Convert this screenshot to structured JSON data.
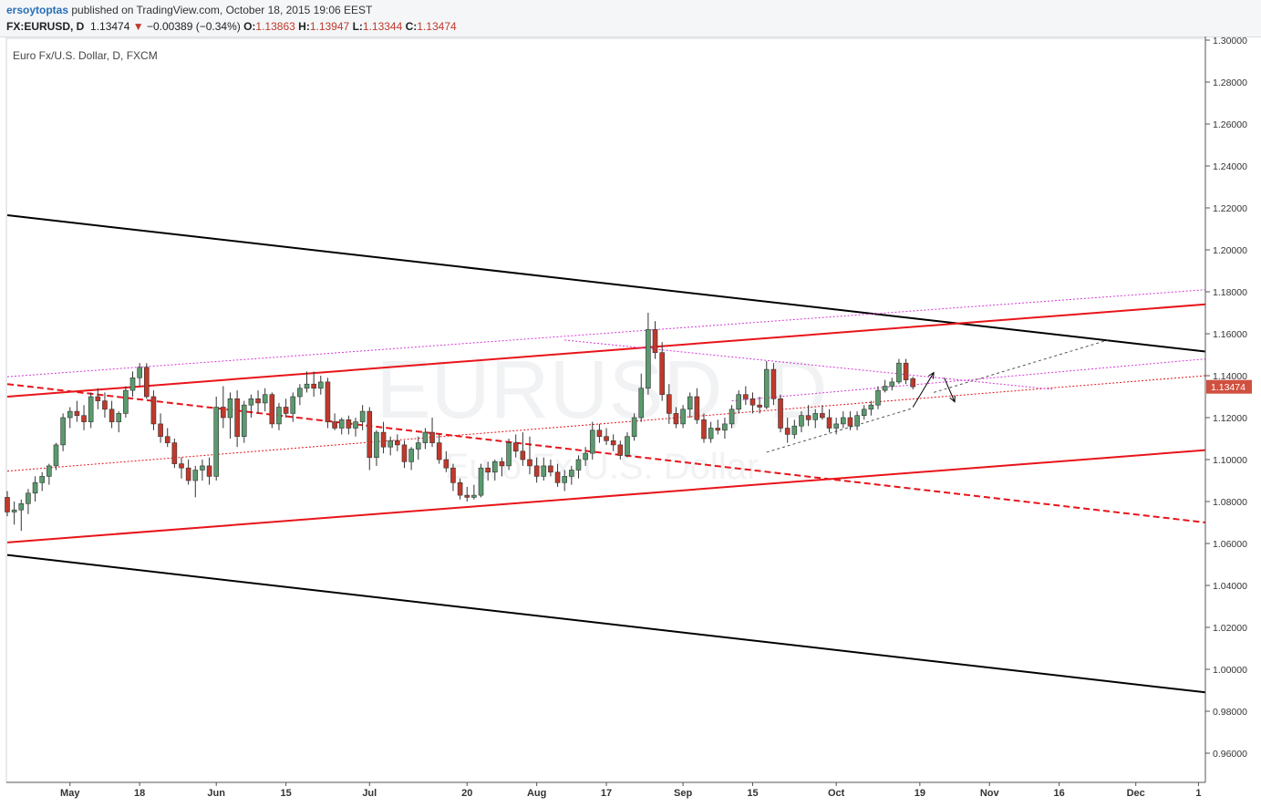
{
  "header": {
    "author": "ersoytoptas",
    "published_text": "published on TradingView.com, October 18, 2015 19:06 EEST",
    "symbol": "FX:EURUSD, D",
    "last": "1.13474",
    "change": "−0.00389 (−0.34%)",
    "open_label": "O:",
    "open": "1.13863",
    "high_label": "H:",
    "high": "1.13947",
    "low_label": "L:",
    "low": "1.13344",
    "close_label": "C:",
    "close": "1.13474"
  },
  "chart_title": "Euro Fx/U.S. Dollar, D, FXCM",
  "watermark": {
    "symbol": "EURUSD, D",
    "name": "Euro Fx/U.S. Dollar"
  },
  "price_label": "1.13474",
  "colors": {
    "up": "#5a9a6e",
    "down": "#c0392b",
    "channel": "#000000",
    "trend": "#e8141a",
    "magenta": "#d63ad6"
  },
  "chart_data": {
    "type": "candlestick",
    "title": "Euro Fx/U.S. Dollar, D, FXCM",
    "ylim": [
      0.95,
      1.3
    ],
    "y_ticks": [
      "1.30000",
      "1.28000",
      "1.26000",
      "1.24000",
      "1.22000",
      "1.20000",
      "1.18000",
      "1.16000",
      "1.14000",
      "1.12000",
      "1.10000",
      "1.08000",
      "1.06000",
      "1.04000",
      "1.02000",
      "1.00000",
      "0.98000",
      "0.96000"
    ],
    "x_ticks": [
      {
        "label": "May",
        "bar": 9
      },
      {
        "label": "18",
        "bar": 19
      },
      {
        "label": "Jun",
        "bar": 30
      },
      {
        "label": "15",
        "bar": 40
      },
      {
        "label": "Jul",
        "bar": 52
      },
      {
        "label": "20",
        "bar": 66
      },
      {
        "label": "Aug",
        "bar": 76
      },
      {
        "label": "17",
        "bar": 86
      },
      {
        "label": "Sep",
        "bar": 97
      },
      {
        "label": "15",
        "bar": 107
      },
      {
        "label": "Oct",
        "bar": 119
      },
      {
        "label": "19",
        "bar": 131
      },
      {
        "label": "Nov",
        "bar": 141
      },
      {
        "label": "16",
        "bar": 151
      },
      {
        "label": "Dec",
        "bar": 162
      },
      {
        "label": "1",
        "bar": 171
      }
    ],
    "ohlc": [
      [
        1.082,
        1.085,
        1.073,
        1.075
      ],
      [
        1.075,
        1.08,
        1.069,
        1.076
      ],
      [
        1.076,
        1.081,
        1.066,
        1.079
      ],
      [
        1.079,
        1.086,
        1.074,
        1.084
      ],
      [
        1.084,
        1.092,
        1.08,
        1.089
      ],
      [
        1.089,
        1.094,
        1.085,
        1.092
      ],
      [
        1.092,
        1.098,
        1.088,
        1.097
      ],
      [
        1.097,
        1.108,
        1.095,
        1.107
      ],
      [
        1.107,
        1.122,
        1.104,
        1.12
      ],
      [
        1.12,
        1.125,
        1.115,
        1.123
      ],
      [
        1.123,
        1.128,
        1.118,
        1.121
      ],
      [
        1.121,
        1.126,
        1.114,
        1.118
      ],
      [
        1.118,
        1.132,
        1.115,
        1.13
      ],
      [
        1.13,
        1.134,
        1.124,
        1.128
      ],
      [
        1.128,
        1.132,
        1.12,
        1.124
      ],
      [
        1.124,
        1.128,
        1.115,
        1.118
      ],
      [
        1.118,
        1.123,
        1.113,
        1.122
      ],
      [
        1.122,
        1.135,
        1.12,
        1.133
      ],
      [
        1.133,
        1.142,
        1.13,
        1.139
      ],
      [
        1.139,
        1.146,
        1.135,
        1.144
      ],
      [
        1.144,
        1.146,
        1.129,
        1.13
      ],
      [
        1.13,
        1.133,
        1.114,
        1.117
      ],
      [
        1.117,
        1.122,
        1.108,
        1.111
      ],
      [
        1.111,
        1.115,
        1.106,
        1.108
      ],
      [
        1.108,
        1.11,
        1.096,
        1.098
      ],
      [
        1.098,
        1.101,
        1.091,
        1.096
      ],
      [
        1.096,
        1.1,
        1.088,
        1.09
      ],
      [
        1.09,
        1.097,
        1.082,
        1.095
      ],
      [
        1.095,
        1.1,
        1.09,
        1.097
      ],
      [
        1.097,
        1.101,
        1.088,
        1.092
      ],
      [
        1.092,
        1.13,
        1.09,
        1.125
      ],
      [
        1.125,
        1.135,
        1.115,
        1.12
      ],
      [
        1.12,
        1.132,
        1.11,
        1.129
      ],
      [
        1.129,
        1.133,
        1.106,
        1.111
      ],
      [
        1.111,
        1.128,
        1.108,
        1.126
      ],
      [
        1.126,
        1.131,
        1.12,
        1.129
      ],
      [
        1.129,
        1.133,
        1.122,
        1.127
      ],
      [
        1.127,
        1.134,
        1.123,
        1.131
      ],
      [
        1.131,
        1.132,
        1.115,
        1.117
      ],
      [
        1.117,
        1.127,
        1.114,
        1.125
      ],
      [
        1.125,
        1.129,
        1.12,
        1.122
      ],
      [
        1.122,
        1.132,
        1.118,
        1.13
      ],
      [
        1.13,
        1.136,
        1.126,
        1.134
      ],
      [
        1.134,
        1.142,
        1.132,
        1.136
      ],
      [
        1.136,
        1.142,
        1.13,
        1.134
      ],
      [
        1.134,
        1.14,
        1.131,
        1.137
      ],
      [
        1.137,
        1.139,
        1.115,
        1.118
      ],
      [
        1.118,
        1.122,
        1.114,
        1.115
      ],
      [
        1.115,
        1.12,
        1.112,
        1.119
      ],
      [
        1.119,
        1.121,
        1.112,
        1.115
      ],
      [
        1.115,
        1.12,
        1.111,
        1.118
      ],
      [
        1.118,
        1.126,
        1.114,
        1.123
      ],
      [
        1.123,
        1.125,
        1.095,
        1.101
      ],
      [
        1.101,
        1.114,
        1.097,
        1.113
      ],
      [
        1.113,
        1.118,
        1.103,
        1.106
      ],
      [
        1.106,
        1.111,
        1.102,
        1.109
      ],
      [
        1.109,
        1.112,
        1.104,
        1.107
      ],
      [
        1.107,
        1.109,
        1.096,
        1.099
      ],
      [
        1.099,
        1.106,
        1.095,
        1.105
      ],
      [
        1.105,
        1.111,
        1.1,
        1.108
      ],
      [
        1.108,
        1.115,
        1.105,
        1.113
      ],
      [
        1.113,
        1.12,
        1.106,
        1.108
      ],
      [
        1.108,
        1.112,
        1.098,
        1.1
      ],
      [
        1.1,
        1.104,
        1.094,
        1.096
      ],
      [
        1.096,
        1.098,
        1.085,
        1.089
      ],
      [
        1.089,
        1.091,
        1.081,
        1.083
      ],
      [
        1.083,
        1.087,
        1.08,
        1.082
      ],
      [
        1.082,
        1.088,
        1.081,
        1.083
      ],
      [
        1.083,
        1.098,
        1.082,
        1.096
      ],
      [
        1.096,
        1.099,
        1.09,
        1.094
      ],
      [
        1.094,
        1.1,
        1.09,
        1.099
      ],
      [
        1.099,
        1.101,
        1.092,
        1.097
      ],
      [
        1.097,
        1.11,
        1.095,
        1.108
      ],
      [
        1.108,
        1.112,
        1.101,
        1.104
      ],
      [
        1.104,
        1.113,
        1.097,
        1.1
      ],
      [
        1.1,
        1.111,
        1.093,
        1.097
      ],
      [
        1.097,
        1.101,
        1.089,
        1.092
      ],
      [
        1.092,
        1.101,
        1.09,
        1.097
      ],
      [
        1.097,
        1.1,
        1.092,
        1.094
      ],
      [
        1.094,
        1.098,
        1.087,
        1.089
      ],
      [
        1.089,
        1.095,
        1.085,
        1.092
      ],
      [
        1.092,
        1.097,
        1.088,
        1.095
      ],
      [
        1.095,
        1.102,
        1.091,
        1.1
      ],
      [
        1.1,
        1.106,
        1.097,
        1.103
      ],
      [
        1.103,
        1.118,
        1.1,
        1.114
      ],
      [
        1.114,
        1.117,
        1.108,
        1.111
      ],
      [
        1.111,
        1.115,
        1.107,
        1.109
      ],
      [
        1.109,
        1.112,
        1.104,
        1.107
      ],
      [
        1.107,
        1.109,
        1.1,
        1.102
      ],
      [
        1.102,
        1.113,
        1.101,
        1.111
      ],
      [
        1.111,
        1.122,
        1.109,
        1.12
      ],
      [
        1.12,
        1.141,
        1.118,
        1.134
      ],
      [
        1.134,
        1.17,
        1.131,
        1.162
      ],
      [
        1.162,
        1.166,
        1.148,
        1.151
      ],
      [
        1.151,
        1.156,
        1.128,
        1.131
      ],
      [
        1.131,
        1.136,
        1.117,
        1.122
      ],
      [
        1.122,
        1.125,
        1.115,
        1.117
      ],
      [
        1.117,
        1.126,
        1.115,
        1.124
      ],
      [
        1.124,
        1.132,
        1.12,
        1.13
      ],
      [
        1.13,
        1.134,
        1.117,
        1.119
      ],
      [
        1.119,
        1.122,
        1.108,
        1.11
      ],
      [
        1.11,
        1.118,
        1.108,
        1.115
      ],
      [
        1.115,
        1.119,
        1.112,
        1.114
      ],
      [
        1.114,
        1.12,
        1.11,
        1.117
      ],
      [
        1.117,
        1.126,
        1.115,
        1.124
      ],
      [
        1.124,
        1.133,
        1.122,
        1.131
      ],
      [
        1.131,
        1.135,
        1.126,
        1.129
      ],
      [
        1.129,
        1.132,
        1.122,
        1.126
      ],
      [
        1.126,
        1.13,
        1.122,
        1.125
      ],
      [
        1.125,
        1.147,
        1.124,
        1.143
      ],
      [
        1.143,
        1.146,
        1.126,
        1.129
      ],
      [
        1.129,
        1.131,
        1.113,
        1.115
      ],
      [
        1.115,
        1.12,
        1.108,
        1.112
      ],
      [
        1.112,
        1.119,
        1.11,
        1.116
      ],
      [
        1.116,
        1.123,
        1.113,
        1.121
      ],
      [
        1.121,
        1.126,
        1.116,
        1.119
      ],
      [
        1.119,
        1.124,
        1.115,
        1.122
      ],
      [
        1.122,
        1.126,
        1.119,
        1.12
      ],
      [
        1.12,
        1.124,
        1.113,
        1.115
      ],
      [
        1.115,
        1.12,
        1.112,
        1.117
      ],
      [
        1.117,
        1.123,
        1.115,
        1.12
      ],
      [
        1.12,
        1.123,
        1.114,
        1.116
      ],
      [
        1.116,
        1.123,
        1.114,
        1.121
      ],
      [
        1.121,
        1.126,
        1.119,
        1.124
      ],
      [
        1.124,
        1.128,
        1.121,
        1.126
      ],
      [
        1.126,
        1.135,
        1.124,
        1.133
      ],
      [
        1.133,
        1.138,
        1.132,
        1.135
      ],
      [
        1.135,
        1.139,
        1.133,
        1.137
      ],
      [
        1.137,
        1.148,
        1.136,
        1.146
      ],
      [
        1.146,
        1.148,
        1.136,
        1.138
      ],
      [
        1.1386,
        1.1395,
        1.1334,
        1.1347
      ]
    ],
    "lines": [
      {
        "name": "channel-upper",
        "style": "solid-black",
        "from": [
          0,
          1.2165
        ],
        "to": [
          172,
          1.1515
        ]
      },
      {
        "name": "channel-lower",
        "style": "solid-black",
        "from": [
          0,
          1.0545
        ],
        "to": [
          172,
          0.989
        ]
      },
      {
        "name": "red-upper",
        "style": "solid-red",
        "from": [
          0,
          1.13
        ],
        "to": [
          172,
          1.174
        ]
      },
      {
        "name": "red-lower",
        "style": "solid-red",
        "from": [
          0,
          1.0605
        ],
        "to": [
          172,
          1.1045
        ]
      },
      {
        "name": "red-dashed",
        "style": "dashed-red",
        "from": [
          0,
          1.136
        ],
        "to": [
          172,
          1.07
        ]
      },
      {
        "name": "red-dotted",
        "style": "dotted-red",
        "from": [
          0,
          1.0945
        ],
        "to": [
          172,
          1.14
        ]
      },
      {
        "name": "magenta-top",
        "style": "dotted-magenta",
        "from": [
          0,
          1.1395
        ],
        "to": [
          172,
          1.181
        ]
      },
      {
        "name": "magenta-mid",
        "style": "dotted-magenta",
        "from": [
          104,
          1.128
        ],
        "to": [
          172,
          1.148
        ]
      },
      {
        "name": "magenta-diag",
        "style": "dotted-magenta",
        "from": [
          80,
          1.157
        ],
        "to": [
          150,
          1.1335
        ]
      },
      {
        "name": "gray-support",
        "style": "dashed-gray",
        "from": [
          109,
          1.1035
        ],
        "to": [
          130,
          1.1245
        ]
      },
      {
        "name": "gray-projection",
        "style": "dashed-gray",
        "from": [
          133,
          1.132
        ],
        "to": [
          158,
          1.157
        ]
      }
    ],
    "arrows": [
      {
        "name": "arrow-up",
        "from": [
          130,
          1.125
        ],
        "to": [
          133,
          1.1415
        ]
      },
      {
        "name": "arrow-down",
        "from": [
          134.5,
          1.139
        ],
        "to": [
          136,
          1.1275
        ]
      }
    ]
  }
}
